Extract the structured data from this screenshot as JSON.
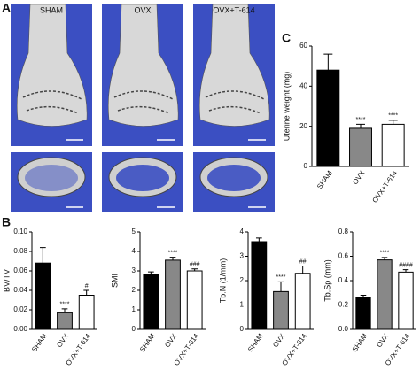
{
  "panel_a": {
    "label": "A",
    "columns": [
      "SHAM",
      "OVX",
      "OVX+T-614"
    ]
  },
  "panel_b": {
    "label": "B"
  },
  "panel_c": {
    "label": "C"
  },
  "chart_data": [
    {
      "type": "bar",
      "ylabel": "Uterine weight (mg)",
      "categories": [
        "SHAM",
        "OVX",
        "OVX+T-614"
      ],
      "values": [
        48,
        19,
        21
      ],
      "errors": [
        8,
        2,
        2
      ],
      "annotations": [
        null,
        "****",
        "****"
      ],
      "colors": [
        "#000000",
        "#888888",
        "#ffffff"
      ],
      "ylim": [
        0,
        60
      ],
      "yticks": [
        0,
        20,
        40,
        60
      ]
    },
    {
      "type": "bar",
      "ylabel": "BV/TV",
      "categories": [
        "SHAM",
        "OVX",
        "OVX+T-614"
      ],
      "values": [
        0.068,
        0.017,
        0.035
      ],
      "errors": [
        0.016,
        0.004,
        0.005
      ],
      "annotations": [
        null,
        "****",
        "#"
      ],
      "colors": [
        "#000000",
        "#888888",
        "#ffffff"
      ],
      "ylim": [
        0,
        0.1
      ],
      "yticks": [
        {
          "value": 0,
          "label": "0.00"
        },
        {
          "value": 0.02,
          "label": "0.02"
        },
        {
          "value": 0.04,
          "label": "0.04"
        },
        {
          "value": 0.06,
          "label": "0.06"
        },
        {
          "value": 0.08,
          "label": "0.08"
        },
        {
          "value": 0.1,
          "label": "0.10"
        }
      ]
    },
    {
      "type": "bar",
      "ylabel": "SMI",
      "categories": [
        "SHAM",
        "OVX",
        "OVX+T-614"
      ],
      "values": [
        2.8,
        3.55,
        3.0
      ],
      "errors": [
        0.15,
        0.15,
        0.1
      ],
      "annotations": [
        null,
        "****",
        "###"
      ],
      "colors": [
        "#000000",
        "#888888",
        "#ffffff"
      ],
      "ylim": [
        0,
        5
      ],
      "yticks": [
        0,
        1,
        2,
        3,
        4,
        5
      ]
    },
    {
      "type": "bar",
      "ylabel": "Tb.N (1/mm)",
      "categories": [
        "SHAM",
        "OVX",
        "OVX+T-614"
      ],
      "values": [
        3.6,
        1.55,
        2.3
      ],
      "errors": [
        0.15,
        0.4,
        0.3
      ],
      "annotations": [
        null,
        "****",
        "##"
      ],
      "colors": [
        "#000000",
        "#888888",
        "#ffffff"
      ],
      "ylim": [
        0,
        4
      ],
      "yticks": [
        0,
        1,
        2,
        3,
        4
      ]
    },
    {
      "type": "bar",
      "ylabel": "Tb.Sp (mm)",
      "categories": [
        "SHAM",
        "OVX",
        "OVX+T-614"
      ],
      "values": [
        0.26,
        0.57,
        0.47
      ],
      "errors": [
        0.02,
        0.02,
        0.02
      ],
      "annotations": [
        null,
        "****",
        "####"
      ],
      "colors": [
        "#000000",
        "#888888",
        "#ffffff"
      ],
      "ylim": [
        0,
        0.8
      ],
      "yticks": [
        {
          "value": 0,
          "label": "0.0"
        },
        0.2,
        0.4,
        0.6,
        0.8
      ]
    }
  ]
}
